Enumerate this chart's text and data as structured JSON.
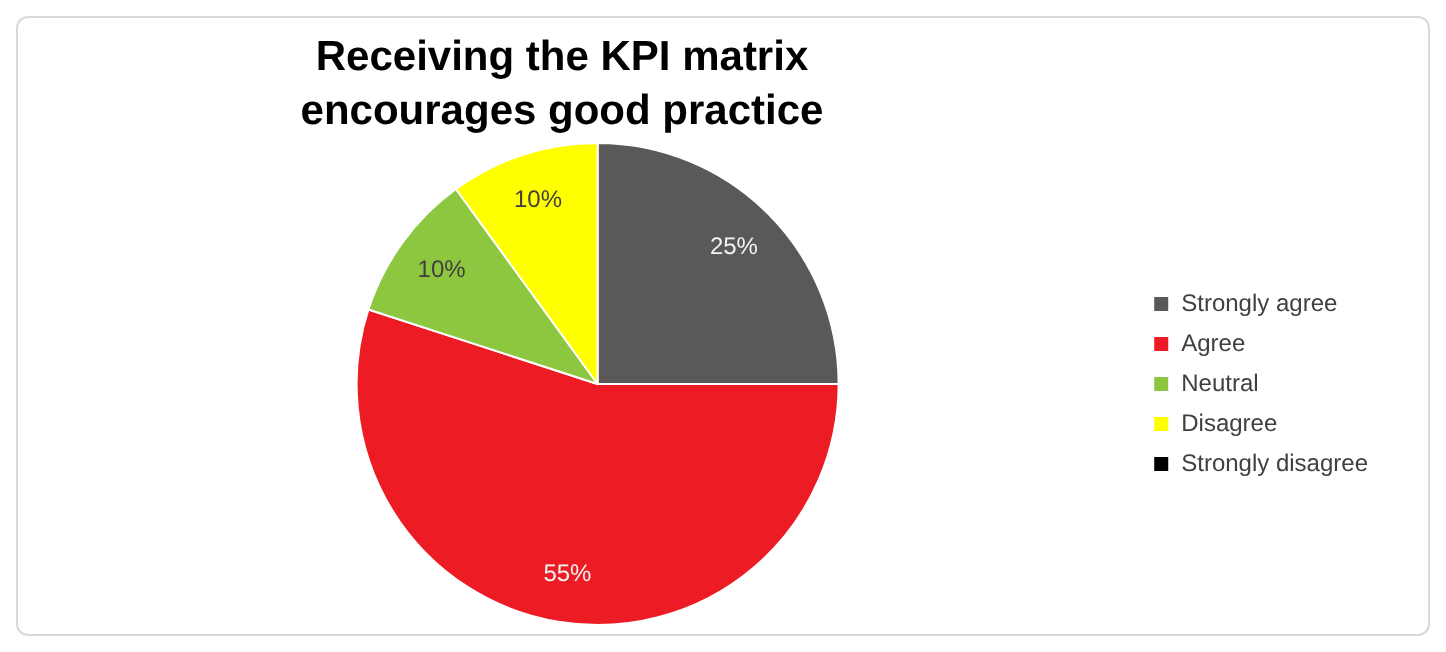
{
  "chart_data": {
    "type": "pie",
    "title": "Receiving the KPI matrix encourages good practice",
    "categories": [
      "Strongly agree",
      "Agree",
      "Neutral",
      "Disagree",
      "Strongly disagree"
    ],
    "values": [
      25,
      55,
      10,
      10,
      0
    ],
    "colors": [
      "#595959",
      "#ed1c24",
      "#8dc63f",
      "#ffff00",
      "#000000"
    ],
    "value_labels": [
      "25%",
      "55%",
      "10%",
      "10%",
      null
    ],
    "legend": "right"
  }
}
